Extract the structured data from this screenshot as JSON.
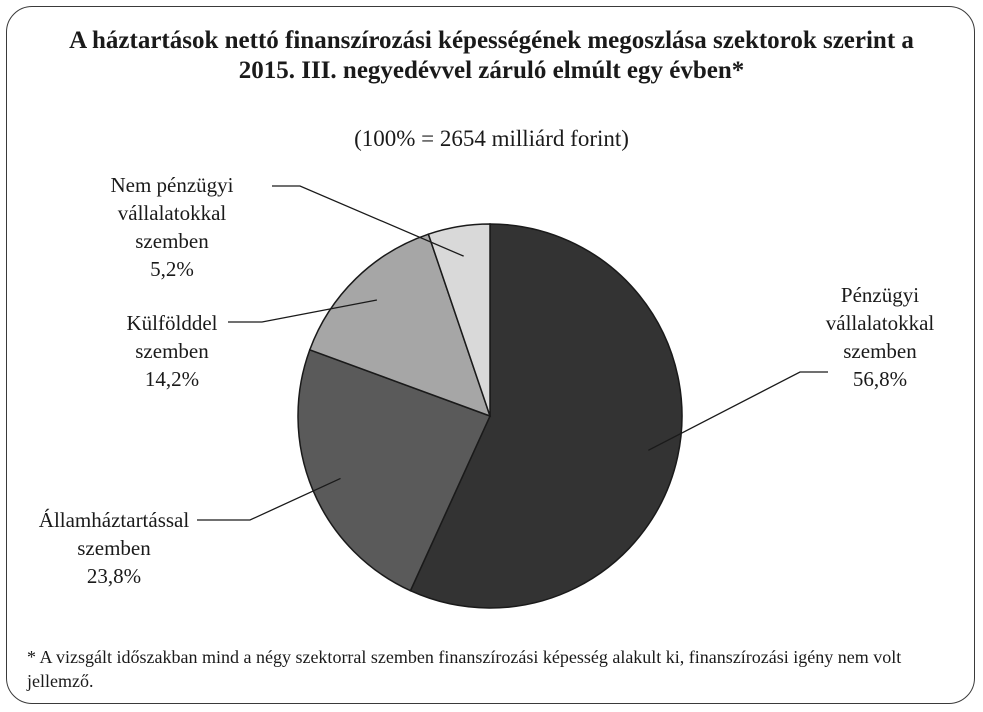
{
  "chart_data": {
    "type": "pie",
    "title": "A háztartások nettó finanszírozási képességének megoszlása szektorok szerint a 2015. III. negyedévvel záruló elmúlt egy évben*",
    "subtitle": "(100% = 2654 milliárd forint)",
    "slices": [
      {
        "label_lines": [
          "Pénzügyi",
          "vállalatokkal",
          "szemben"
        ],
        "value": 56.8,
        "value_label": "56,8%",
        "color": "#333333"
      },
      {
        "label_lines": [
          "Államháztartással",
          "szemben"
        ],
        "value": 23.8,
        "value_label": "23,8%",
        "color": "#5a5a5a"
      },
      {
        "label_lines": [
          "Külfölddel",
          "szemben"
        ],
        "value": 14.2,
        "value_label": "14,2%",
        "color": "#a6a6a6"
      },
      {
        "label_lines": [
          "Nem pénzügyi",
          "vállalatokkal",
          "szemben"
        ],
        "value": 5.2,
        "value_label": "5,2%",
        "color": "#d9d9d9"
      }
    ],
    "legend": "none",
    "footnote": "* A vizsgált időszakban mind a négy szektorral szemben finanszírozási képesség alakult ki, finanszírozási igény nem volt jellemző."
  }
}
